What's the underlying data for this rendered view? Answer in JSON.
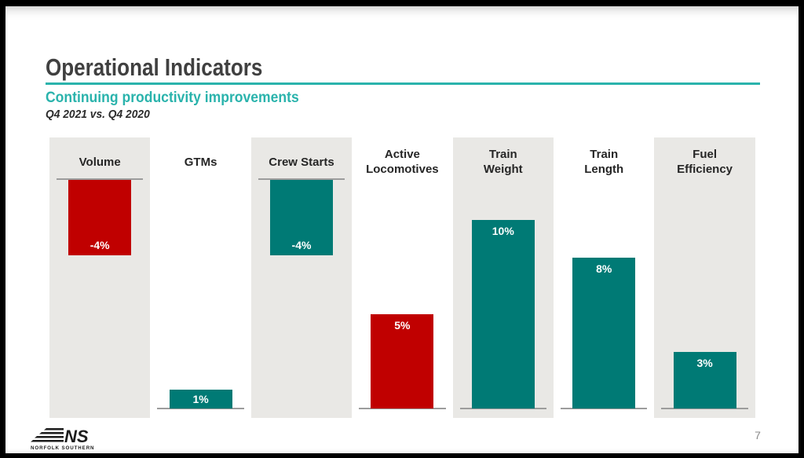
{
  "slide": {
    "title": "Operational Indicators",
    "subtitle": "Continuing productivity improvements",
    "comparison": "Q4 2021 vs. Q4 2020",
    "page_number": "7"
  },
  "footer": {
    "logo_mark": "NS",
    "logo_name": "NORFOLK SOUTHERN"
  },
  "colors": {
    "negative_red": "#c00000",
    "teal": "#007a75",
    "accent_teal": "#2ab3ac",
    "panel_gray": "#e9e8e5",
    "baseline_gray": "#9c9c9c",
    "title_gray": "#404040",
    "page_gray": "#898989"
  },
  "chart_data": {
    "type": "bar",
    "title": "Operational Indicators",
    "subtitle": "Continuing productivity improvements",
    "comparison_period": "Q4 2021 vs. Q4 2020",
    "unit": "%",
    "ylim": [
      -4,
      10
    ],
    "grid": false,
    "legend": "none",
    "categories": [
      "Volume",
      "GTMs",
      "Crew Starts",
      "Active Locomotives",
      "Train Weight",
      "Train Length",
      "Fuel Efficiency"
    ],
    "values": [
      -4,
      1,
      -4,
      5,
      10,
      8,
      3
    ],
    "columns": [
      {
        "label_lines": [
          "Volume"
        ],
        "value": -4,
        "value_label": "-4%",
        "direction": "down",
        "color_key": "negative_red",
        "shaded": true
      },
      {
        "label_lines": [
          "GTMs"
        ],
        "value": 1,
        "value_label": "1%",
        "direction": "up",
        "color_key": "teal",
        "shaded": false
      },
      {
        "label_lines": [
          "Crew Starts"
        ],
        "value": -4,
        "value_label": "-4%",
        "direction": "down",
        "color_key": "teal",
        "shaded": true
      },
      {
        "label_lines": [
          "Active",
          "Locomotives"
        ],
        "value": 5,
        "value_label": "5%",
        "direction": "up",
        "color_key": "negative_red",
        "shaded": false
      },
      {
        "label_lines": [
          "Train",
          "Weight"
        ],
        "value": 10,
        "value_label": "10%",
        "direction": "up",
        "color_key": "teal",
        "shaded": true
      },
      {
        "label_lines": [
          "Train",
          "Length"
        ],
        "value": 8,
        "value_label": "8%",
        "direction": "up",
        "color_key": "teal",
        "shaded": false
      },
      {
        "label_lines": [
          "Fuel",
          "Efficiency"
        ],
        "value": 3,
        "value_label": "3%",
        "direction": "up",
        "color_key": "teal",
        "shaded": true
      }
    ]
  }
}
